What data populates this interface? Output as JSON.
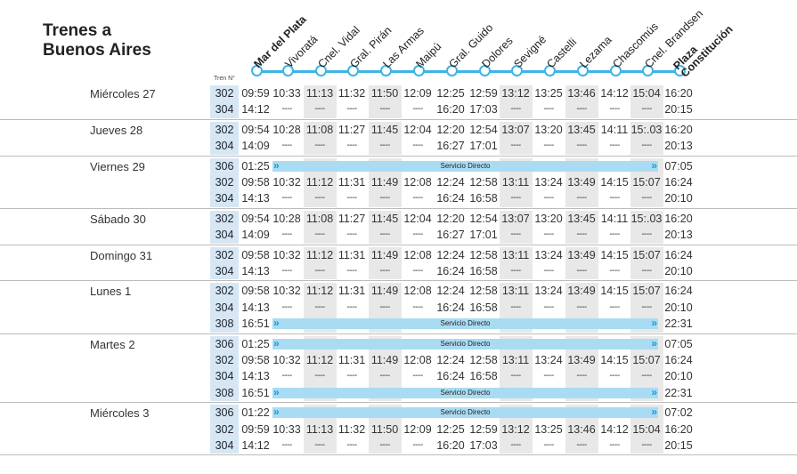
{
  "title": [
    "Trenes a",
    "Buenos Aires"
  ],
  "tren_label": "Tren N°",
  "stations": [
    "Mar del Plata",
    "Vivoratá",
    "Cnel. Vidal",
    "Gral. Pirán",
    "Las Armas",
    "Maipú",
    "Gral. Guido",
    "Dolores",
    "Sevigné",
    "Castelli",
    "Lezama",
    "Chascomús",
    "Cnel. Brandsen",
    "Plaza Constitución"
  ],
  "direct_label": "Servicio Directo",
  "days": [
    {
      "day": "Miércoles 27",
      "rows": [
        {
          "tren": "302",
          "times": [
            "09:59",
            "10:33",
            "11:13",
            "11:32",
            "11:50",
            "12:09",
            "12:25",
            "12:59",
            "13:12",
            "13:25",
            "13:46",
            "14:12",
            "15:04",
            "16:20"
          ]
        },
        {
          "tren": "304",
          "times": [
            "14:12",
            "----",
            "----",
            "----",
            "----",
            "----",
            "16:20",
            "17:03",
            "----",
            "----",
            "----",
            "----",
            "----",
            "20:15"
          ]
        }
      ]
    },
    {
      "day": "Jueves 28",
      "rows": [
        {
          "tren": "302",
          "times": [
            "09:54",
            "10:28",
            "11:08",
            "11:27",
            "11:45",
            "12:04",
            "12:20",
            "12:54",
            "13:07",
            "13:20",
            "13:45",
            "14:11",
            "15:.03",
            "16:20"
          ]
        },
        {
          "tren": "304",
          "times": [
            "14:09",
            "----",
            "----",
            "----",
            "----",
            "----",
            "16:27",
            "17:01",
            "----",
            "----",
            "----",
            "----",
            "----",
            "20:13"
          ]
        }
      ]
    },
    {
      "day": "Viernes 29",
      "rows": [
        {
          "tren": "306",
          "direct": true,
          "times": [
            "01:25",
            "07:05"
          ]
        },
        {
          "tren": "302",
          "times": [
            "09:58",
            "10:32",
            "11:12",
            "11:31",
            "11:49",
            "12:08",
            "12:24",
            "12:58",
            "13:11",
            "13:24",
            "13:49",
            "14:15",
            "15:07",
            "16:24"
          ]
        },
        {
          "tren": "304",
          "times": [
            "14:13",
            "----",
            "----",
            "----",
            "----",
            "----",
            "16:24",
            "16:58",
            "----",
            "----",
            "----",
            "----",
            "----",
            "20:10"
          ]
        }
      ]
    },
    {
      "day": "Sábado 30",
      "rows": [
        {
          "tren": "302",
          "times": [
            "09:54",
            "10:28",
            "11:08",
            "11:27",
            "11:45",
            "12:04",
            "12:20",
            "12:54",
            "13:07",
            "13:20",
            "13:45",
            "14:11",
            "15:.03",
            "16:20"
          ]
        },
        {
          "tren": "304",
          "times": [
            "14:09",
            "----",
            "----",
            "----",
            "----",
            "----",
            "16:27",
            "17:01",
            "----",
            "----",
            "----",
            "----",
            "----",
            "20:13"
          ]
        }
      ]
    },
    {
      "day": "Domingo 31",
      "rows": [
        {
          "tren": "302",
          "times": [
            "09:58",
            "10:32",
            "11:12",
            "11:31",
            "11:49",
            "12:08",
            "12:24",
            "12:58",
            "13:11",
            "13:24",
            "13:49",
            "14:15",
            "15:07",
            "16:24"
          ]
        },
        {
          "tren": "304",
          "times": [
            "14:13",
            "----",
            "----",
            "----",
            "----",
            "----",
            "16:24",
            "16:58",
            "----",
            "----",
            "----",
            "----",
            "----",
            "20:10"
          ]
        }
      ]
    },
    {
      "day": "Lunes 1",
      "rows": [
        {
          "tren": "302",
          "times": [
            "09:58",
            "10:32",
            "11:12",
            "11:31",
            "11:49",
            "12:08",
            "12:24",
            "12:58",
            "13:11",
            "13:24",
            "13:49",
            "14:15",
            "15:07",
            "16:24"
          ]
        },
        {
          "tren": "304",
          "times": [
            "14:13",
            "----",
            "----",
            "----",
            "----",
            "----",
            "16:24",
            "16:58",
            "----",
            "----",
            "----",
            "----",
            "----",
            "20:10"
          ]
        },
        {
          "tren": "308",
          "direct": true,
          "times": [
            "16:51",
            "22:31"
          ]
        }
      ]
    },
    {
      "day": "Martes 2",
      "rows": [
        {
          "tren": "306",
          "direct": true,
          "times": [
            "01:25",
            "07:05"
          ]
        },
        {
          "tren": "302",
          "times": [
            "09:58",
            "10:32",
            "11:12",
            "11:31",
            "11:49",
            "12:08",
            "12:24",
            "12:58",
            "13:11",
            "13:24",
            "13:49",
            "14:15",
            "15:07",
            "16:24"
          ]
        },
        {
          "tren": "304",
          "times": [
            "14:13",
            "----",
            "----",
            "----",
            "----",
            "----",
            "16:24",
            "16:58",
            "----",
            "----",
            "----",
            "----",
            "----",
            "20:10"
          ]
        },
        {
          "tren": "308",
          "direct": true,
          "times": [
            "16:51",
            "22:31"
          ]
        }
      ]
    },
    {
      "day": "Miércoles 3",
      "rows": [
        {
          "tren": "306",
          "direct": true,
          "times": [
            "01:22",
            "07:02"
          ]
        },
        {
          "tren": "302",
          "times": [
            "09:59",
            "10:33",
            "11:13",
            "11:32",
            "11:50",
            "12:09",
            "12:25",
            "12:59",
            "13:12",
            "13:25",
            "13:46",
            "14:12",
            "15:04",
            "16:20"
          ]
        },
        {
          "tren": "304",
          "times": [
            "14:12",
            "----",
            "----",
            "----",
            "----",
            "----",
            "16:20",
            "17:03",
            "----",
            "----",
            "----",
            "----",
            "----",
            "20:15"
          ]
        }
      ]
    }
  ],
  "colors": {
    "line": "#3db4e6",
    "tren_bg": "#d6e7f3",
    "alt_bg": "#e8e8e8",
    "direct_bg": "#a9dcf3",
    "chevron": "#1a9ad6"
  }
}
